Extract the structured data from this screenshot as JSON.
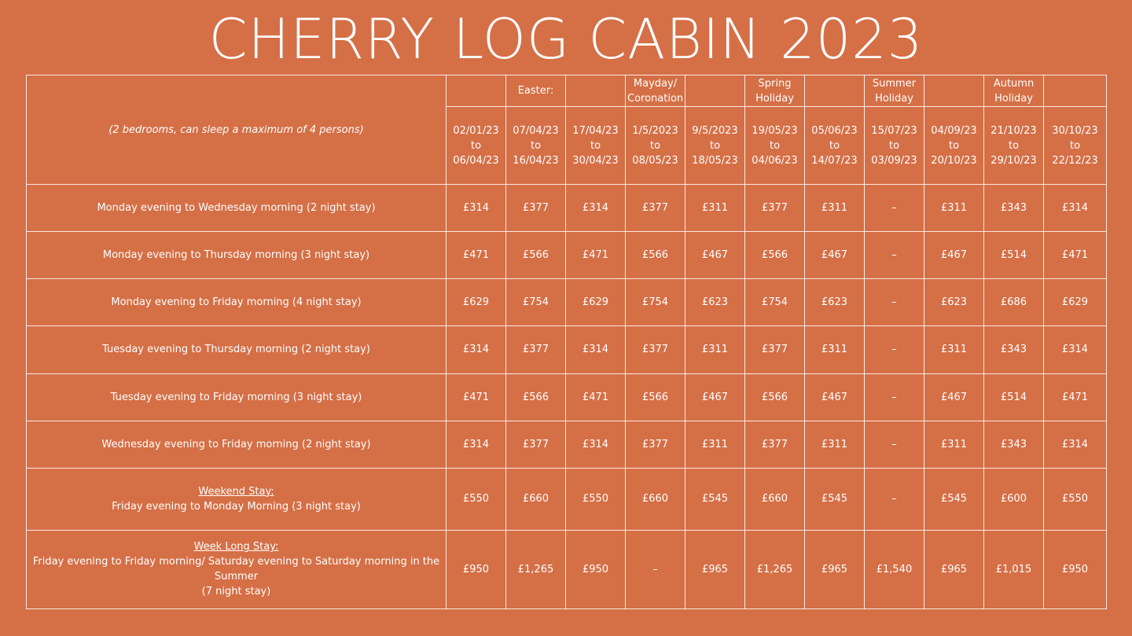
{
  "title": "CHERRY LOG CABIN 2023",
  "description": "(2 bedrooms, can sleep a maximum of 4 persons)",
  "holidays": [
    "",
    "Easter:",
    "",
    "Mayday/ Coronation",
    "",
    "Spring Holiday",
    "",
    "Summer Holiday",
    "",
    "Autumn Holiday",
    ""
  ],
  "periods": [
    {
      "from": "02/01/23",
      "to_word": "to",
      "to": "06/04/23"
    },
    {
      "from": "07/04/23",
      "to_word": "to",
      "to": "16/04/23"
    },
    {
      "from": "17/04/23",
      "to_word": "to",
      "to": "30/04/23"
    },
    {
      "from": "1/5/2023",
      "to_word": "to",
      "to": "08/05/23"
    },
    {
      "from": "9/5/2023",
      "to_word": "to",
      "to": "18/05/23"
    },
    {
      "from": "19/05/23",
      "to_word": "to",
      "to": "04/06/23"
    },
    {
      "from": "05/06/23",
      "to_word": "to",
      "to": "14/07/23"
    },
    {
      "from": "15/07/23",
      "to_word": "to",
      "to": "03/09/23"
    },
    {
      "from": "04/09/23",
      "to_word": "to",
      "to": "20/10/23"
    },
    {
      "from": "21/10/23",
      "to_word": "to",
      "to": "29/10/23"
    },
    {
      "from": "30/10/23",
      "to_word": "to",
      "to": "22/12/23"
    }
  ],
  "rows": [
    {
      "heading": "",
      "label": "Monday evening to Wednesday morning (2 night stay)",
      "label2": "",
      "prices": [
        "£314",
        "£377",
        "£314",
        "£377",
        "£311",
        "£377",
        "£311",
        "–",
        "£311",
        "£343",
        "£314"
      ]
    },
    {
      "heading": "",
      "label": "Monday evening to Thursday morning (3 night stay)",
      "label2": "",
      "prices": [
        "£471",
        "£566",
        "£471",
        "£566",
        "£467",
        "£566",
        "£467",
        "–",
        "£467",
        "£514",
        "£471"
      ]
    },
    {
      "heading": "",
      "label": "Monday evening to Friday morning (4 night stay)",
      "label2": "",
      "prices": [
        "£629",
        "£754",
        "£629",
        "£754",
        "£623",
        "£754",
        "£623",
        "–",
        "£623",
        "£686",
        "£629"
      ]
    },
    {
      "heading": "",
      "label": "Tuesday evening to Thursday morning (2 night stay)",
      "label2": "",
      "prices": [
        "£314",
        "£377",
        "£314",
        "£377",
        "£311",
        "£377",
        "£311",
        "–",
        "£311",
        "£343",
        "£314"
      ]
    },
    {
      "heading": "",
      "label": "Tuesday evening to Friday morning (3 night stay)",
      "label2": "",
      "prices": [
        "£471",
        "£566",
        "£471",
        "£566",
        "£467",
        "£566",
        "£467",
        "–",
        "£467",
        "£514",
        "£471"
      ]
    },
    {
      "heading": "",
      "label": "Wednesday evening to Friday morning (2 night stay)",
      "label2": "",
      "prices": [
        "£314",
        "£377",
        "£314",
        "£377",
        "£311",
        "£377",
        "£311",
        "–",
        "£311",
        "£343",
        "£314"
      ]
    },
    {
      "heading": "Weekend Stay:",
      "label": "Friday evening to Monday Morning (3 night stay)",
      "label2": "",
      "prices": [
        "£550",
        "£660",
        "£550",
        "£660",
        "£545",
        "£660",
        "£545",
        "–",
        "£545",
        "£600",
        "£550"
      ]
    },
    {
      "heading": "Week Long Stay:",
      "label": "Friday evening to Friday morning/ Saturday evening to Saturday morning in the Summer",
      "label2": "(7 night stay)",
      "prices": [
        "£950",
        "£1,265",
        "£950",
        "–",
        "£965",
        "£1,265",
        "£965",
        "£1,540",
        "£965",
        "£1,015",
        "£950"
      ]
    }
  ]
}
